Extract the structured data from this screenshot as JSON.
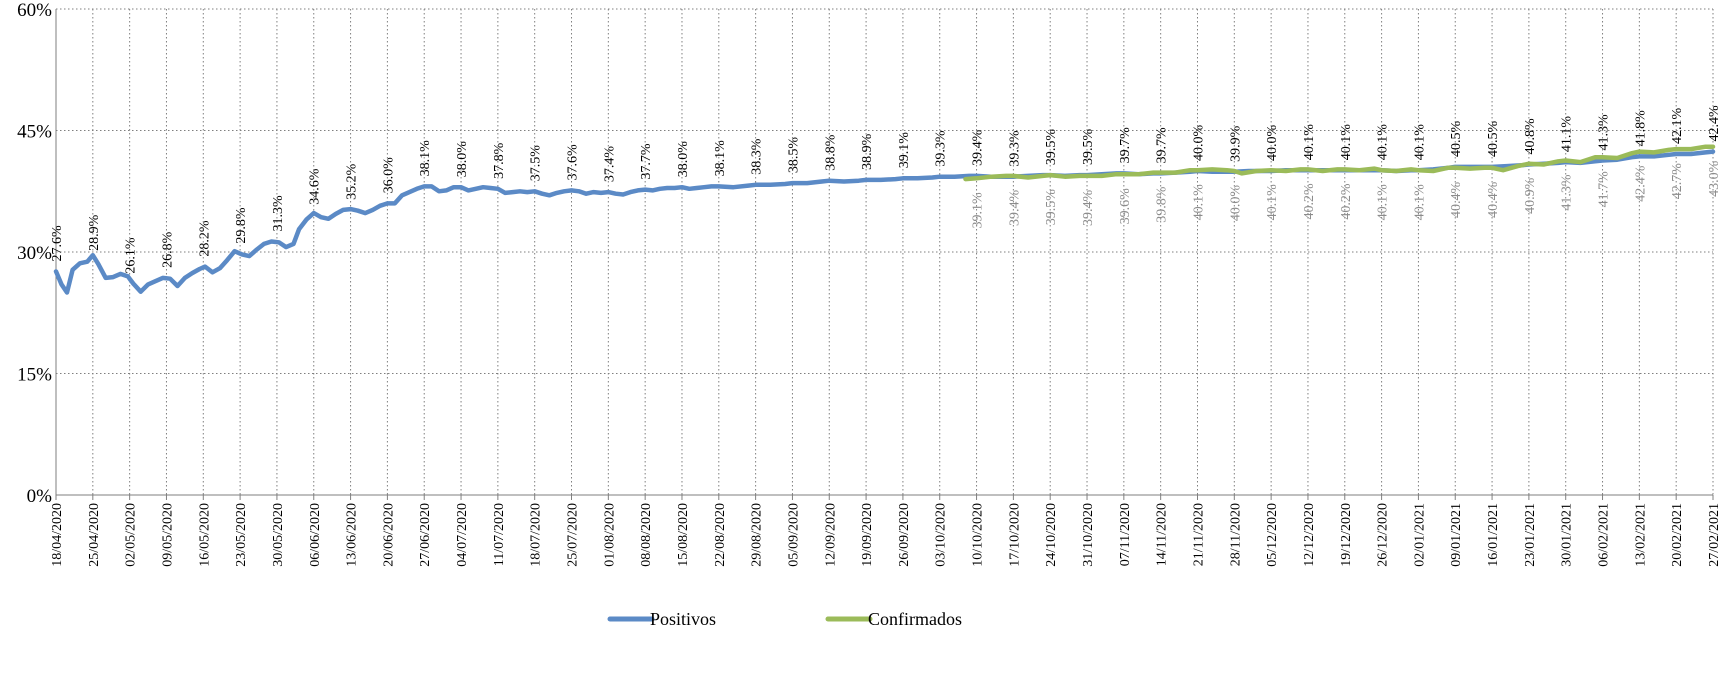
{
  "chart_data": {
    "type": "line",
    "ylim": [
      0,
      60
    ],
    "y_ticks": [
      0,
      15,
      30,
      45,
      60
    ],
    "y_tick_labels": [
      "0%",
      "15%",
      "30%",
      "45%",
      "60%"
    ],
    "x_tick_labels": [
      "18/04/2020",
      "25/04/2020",
      "02/05/2020",
      "09/05/2020",
      "16/05/2020",
      "23/05/2020",
      "30/05/2020",
      "06/06/2020",
      "13/06/2020",
      "20/06/2020",
      "27/06/2020",
      "04/07/2020",
      "11/07/2020",
      "18/07/2020",
      "25/07/2020",
      "01/08/2020",
      "08/08/2020",
      "15/08/2020",
      "22/08/2020",
      "29/08/2020",
      "05/09/2020",
      "12/09/2020",
      "19/09/2020",
      "26/09/2020",
      "03/10/2020",
      "10/10/2020",
      "17/10/2020",
      "24/10/2020",
      "31/10/2020",
      "07/11/2020",
      "14/11/2020",
      "21/11/2020",
      "28/11/2020",
      "05/12/2020",
      "12/12/2020",
      "19/12/2020",
      "26/12/2020",
      "02/01/2021",
      "09/01/2021",
      "16/01/2021",
      "23/01/2021",
      "30/01/2021",
      "06/02/2021",
      "13/02/2021",
      "20/02/2021",
      "27/02/2021"
    ],
    "grid": true,
    "legend_position": "bottom",
    "series": [
      {
        "name": "Positivos",
        "color": "#5b8ac6",
        "x": [
          0,
          1,
          2,
          3,
          4,
          5,
          6,
          7,
          8,
          9,
          10,
          11,
          12,
          13,
          14,
          15,
          16,
          17,
          18,
          19,
          20,
          21,
          22,
          23,
          24,
          25,
          26,
          27,
          28,
          29,
          30,
          31,
          32,
          33,
          34,
          35,
          36,
          37,
          38,
          39,
          40,
          41,
          42,
          43,
          44,
          45
        ],
        "values": [
          27.6,
          28.9,
          26.1,
          26.8,
          28.2,
          29.8,
          31.3,
          34.6,
          35.2,
          36.0,
          38.1,
          38.0,
          37.8,
          37.5,
          37.6,
          37.4,
          37.7,
          38.0,
          38.1,
          38.3,
          38.5,
          38.8,
          38.9,
          39.1,
          39.3,
          39.4,
          39.3,
          39.5,
          39.5,
          39.7,
          39.7,
          40.0,
          39.9,
          40.0,
          40.1,
          40.1,
          40.1,
          40.1,
          40.5,
          40.5,
          40.8,
          41.1,
          41.3,
          41.8,
          42.1,
          42.4
        ],
        "detail": [
          [
            0,
            27.6
          ],
          [
            0.15,
            26.0
          ],
          [
            0.3,
            25.0
          ],
          [
            0.45,
            27.8
          ],
          [
            0.65,
            28.6
          ],
          [
            0.85,
            28.8
          ],
          [
            1.0,
            29.6
          ],
          [
            1.15,
            28.5
          ],
          [
            1.35,
            26.8
          ],
          [
            1.55,
            26.9
          ],
          [
            1.75,
            27.3
          ],
          [
            1.95,
            27.0
          ],
          [
            2.1,
            26.1
          ],
          [
            2.3,
            25.1
          ],
          [
            2.5,
            26.0
          ],
          [
            2.7,
            26.4
          ],
          [
            2.9,
            26.8
          ],
          [
            3.1,
            26.7
          ],
          [
            3.3,
            25.8
          ],
          [
            3.5,
            26.8
          ],
          [
            3.7,
            27.4
          ],
          [
            3.9,
            27.9
          ],
          [
            4.05,
            28.2
          ],
          [
            4.25,
            27.5
          ],
          [
            4.45,
            28.0
          ],
          [
            4.65,
            29.0
          ],
          [
            4.85,
            30.1
          ],
          [
            5.05,
            29.7
          ],
          [
            5.25,
            29.5
          ],
          [
            5.45,
            30.3
          ],
          [
            5.65,
            31.0
          ],
          [
            5.85,
            31.3
          ],
          [
            6.05,
            31.2
          ],
          [
            6.25,
            30.6
          ],
          [
            6.45,
            31.0
          ],
          [
            6.6,
            32.8
          ],
          [
            6.8,
            34.0
          ],
          [
            7.0,
            34.8
          ],
          [
            7.2,
            34.3
          ],
          [
            7.4,
            34.1
          ],
          [
            7.6,
            34.7
          ],
          [
            7.8,
            35.2
          ],
          [
            8.0,
            35.3
          ],
          [
            8.2,
            35.1
          ],
          [
            8.4,
            34.8
          ],
          [
            8.6,
            35.2
          ],
          [
            8.8,
            35.7
          ],
          [
            9.0,
            36.0
          ],
          [
            9.2,
            36.0
          ],
          [
            9.4,
            37.0
          ],
          [
            9.6,
            37.4
          ],
          [
            9.8,
            37.8
          ],
          [
            10.0,
            38.1
          ],
          [
            10.2,
            38.1
          ],
          [
            10.4,
            37.5
          ],
          [
            10.6,
            37.6
          ],
          [
            10.8,
            38.0
          ],
          [
            11.0,
            38.0
          ],
          [
            11.2,
            37.6
          ],
          [
            11.4,
            37.8
          ],
          [
            11.6,
            38.0
          ],
          [
            11.8,
            37.9
          ],
          [
            12.0,
            37.8
          ],
          [
            12.2,
            37.3
          ],
          [
            12.4,
            37.4
          ],
          [
            12.6,
            37.5
          ],
          [
            12.8,
            37.4
          ],
          [
            13.0,
            37.5
          ],
          [
            13.2,
            37.2
          ],
          [
            13.4,
            37.0
          ],
          [
            13.6,
            37.3
          ],
          [
            13.8,
            37.5
          ],
          [
            14.0,
            37.6
          ],
          [
            14.2,
            37.5
          ],
          [
            14.4,
            37.2
          ],
          [
            14.6,
            37.4
          ],
          [
            14.8,
            37.3
          ],
          [
            15.0,
            37.4
          ],
          [
            15.2,
            37.2
          ],
          [
            15.4,
            37.1
          ],
          [
            15.6,
            37.4
          ],
          [
            15.8,
            37.6
          ],
          [
            16.0,
            37.7
          ],
          [
            16.2,
            37.6
          ],
          [
            16.4,
            37.8
          ],
          [
            16.6,
            37.9
          ],
          [
            16.8,
            37.9
          ],
          [
            17.0,
            38.0
          ],
          [
            17.2,
            37.8
          ],
          [
            17.4,
            37.9
          ],
          [
            17.6,
            38.0
          ],
          [
            17.8,
            38.1
          ],
          [
            18.0,
            38.1
          ],
          [
            18.4,
            38.0
          ],
          [
            18.8,
            38.2
          ],
          [
            19.0,
            38.3
          ],
          [
            19.4,
            38.3
          ],
          [
            19.8,
            38.4
          ],
          [
            20.0,
            38.5
          ],
          [
            20.4,
            38.5
          ],
          [
            20.8,
            38.7
          ],
          [
            21.0,
            38.8
          ],
          [
            21.4,
            38.7
          ],
          [
            21.8,
            38.8
          ],
          [
            22.0,
            38.9
          ],
          [
            22.4,
            38.9
          ],
          [
            22.8,
            39.0
          ],
          [
            23.0,
            39.1
          ],
          [
            23.4,
            39.1
          ],
          [
            23.8,
            39.2
          ],
          [
            24.0,
            39.3
          ],
          [
            24.4,
            39.3
          ],
          [
            24.8,
            39.4
          ],
          [
            25.0,
            39.4
          ],
          [
            25.4,
            39.3
          ],
          [
            25.8,
            39.3
          ],
          [
            26.0,
            39.3
          ],
          [
            26.4,
            39.4
          ],
          [
            26.8,
            39.5
          ],
          [
            27.0,
            39.5
          ],
          [
            27.4,
            39.4
          ],
          [
            27.8,
            39.5
          ],
          [
            28.0,
            39.5
          ],
          [
            28.4,
            39.6
          ],
          [
            28.8,
            39.7
          ],
          [
            29.0,
            39.7
          ],
          [
            29.4,
            39.6
          ],
          [
            29.8,
            39.7
          ],
          [
            30.0,
            39.7
          ],
          [
            30.4,
            39.8
          ],
          [
            30.8,
            39.9
          ],
          [
            31.0,
            40.0
          ],
          [
            31.4,
            39.9
          ],
          [
            31.8,
            39.9
          ],
          [
            32.0,
            39.9
          ],
          [
            32.4,
            40.0
          ],
          [
            32.8,
            40.0
          ],
          [
            33.0,
            40.0
          ],
          [
            33.4,
            40.1
          ],
          [
            33.8,
            40.1
          ],
          [
            34.0,
            40.1
          ],
          [
            34.4,
            40.1
          ],
          [
            34.8,
            40.1
          ],
          [
            35.0,
            40.1
          ],
          [
            35.4,
            40.1
          ],
          [
            35.8,
            40.1
          ],
          [
            36.0,
            40.1
          ],
          [
            36.4,
            40.0
          ],
          [
            36.8,
            40.1
          ],
          [
            37.0,
            40.1
          ],
          [
            37.4,
            40.2
          ],
          [
            37.8,
            40.4
          ],
          [
            38.0,
            40.5
          ],
          [
            38.4,
            40.5
          ],
          [
            38.8,
            40.5
          ],
          [
            39.0,
            40.5
          ],
          [
            39.4,
            40.6
          ],
          [
            39.8,
            40.7
          ],
          [
            40.0,
            40.8
          ],
          [
            40.4,
            40.9
          ],
          [
            40.8,
            41.0
          ],
          [
            41.0,
            41.1
          ],
          [
            41.4,
            41.0
          ],
          [
            41.8,
            41.2
          ],
          [
            42.0,
            41.3
          ],
          [
            42.4,
            41.4
          ],
          [
            42.8,
            41.7
          ],
          [
            43.0,
            41.8
          ],
          [
            43.4,
            41.8
          ],
          [
            43.8,
            42.0
          ],
          [
            44.0,
            42.1
          ],
          [
            44.4,
            42.1
          ],
          [
            44.8,
            42.3
          ],
          [
            45.0,
            42.4
          ]
        ]
      },
      {
        "name": "Confirmados",
        "color": "#9bbb59",
        "x": [
          25,
          26,
          27,
          28,
          29,
          30,
          31,
          32,
          33,
          34,
          35,
          36,
          37,
          38,
          39,
          40,
          41,
          42,
          43,
          44,
          45
        ],
        "values": [
          39.1,
          39.4,
          39.5,
          39.4,
          39.6,
          39.8,
          40.1,
          40.0,
          40.1,
          40.2,
          40.2,
          40.1,
          40.1,
          40.4,
          40.4,
          40.9,
          41.3,
          41.7,
          42.4,
          42.7,
          43.0
        ],
        "detail": [
          [
            24.7,
            39.0
          ],
          [
            25.0,
            39.1
          ],
          [
            25.4,
            39.3
          ],
          [
            25.8,
            39.4
          ],
          [
            26.0,
            39.4
          ],
          [
            26.4,
            39.2
          ],
          [
            26.8,
            39.4
          ],
          [
            27.0,
            39.5
          ],
          [
            27.4,
            39.3
          ],
          [
            27.8,
            39.4
          ],
          [
            28.0,
            39.4
          ],
          [
            28.4,
            39.4
          ],
          [
            28.8,
            39.6
          ],
          [
            29.0,
            39.6
          ],
          [
            29.4,
            39.6
          ],
          [
            29.8,
            39.8
          ],
          [
            30.0,
            39.8
          ],
          [
            30.4,
            39.8
          ],
          [
            30.8,
            40.1
          ],
          [
            31.0,
            40.1
          ],
          [
            31.4,
            40.2
          ],
          [
            31.8,
            40.1
          ],
          [
            32.0,
            40.0
          ],
          [
            32.2,
            39.7
          ],
          [
            32.6,
            40.0
          ],
          [
            33.0,
            40.1
          ],
          [
            33.4,
            40.0
          ],
          [
            33.8,
            40.2
          ],
          [
            34.0,
            40.2
          ],
          [
            34.4,
            40.0
          ],
          [
            34.8,
            40.2
          ],
          [
            35.0,
            40.2
          ],
          [
            35.4,
            40.1
          ],
          [
            35.8,
            40.3
          ],
          [
            36.0,
            40.1
          ],
          [
            36.4,
            40.0
          ],
          [
            36.8,
            40.2
          ],
          [
            37.0,
            40.1
          ],
          [
            37.4,
            40.0
          ],
          [
            37.8,
            40.4
          ],
          [
            38.0,
            40.4
          ],
          [
            38.4,
            40.3
          ],
          [
            38.8,
            40.4
          ],
          [
            39.0,
            40.4
          ],
          [
            39.3,
            40.1
          ],
          [
            39.7,
            40.6
          ],
          [
            40.0,
            40.9
          ],
          [
            40.4,
            40.8
          ],
          [
            40.8,
            41.2
          ],
          [
            41.0,
            41.3
          ],
          [
            41.4,
            41.1
          ],
          [
            41.8,
            41.7
          ],
          [
            42.0,
            41.7
          ],
          [
            42.4,
            41.6
          ],
          [
            42.8,
            42.2
          ],
          [
            43.0,
            42.4
          ],
          [
            43.4,
            42.3
          ],
          [
            43.8,
            42.6
          ],
          [
            44.0,
            42.7
          ],
          [
            44.4,
            42.7
          ],
          [
            44.8,
            43.0
          ],
          [
            45.0,
            43.0
          ]
        ]
      }
    ],
    "data_labels": {
      "Positivos": [
        "27.6%",
        "28.9%",
        "26.1%",
        "26.8%",
        "28.2%",
        "29.8%",
        "31.3%",
        "34.6%",
        "35.2%",
        "36.0%",
        "38.1%",
        "38.0%",
        "37.8%",
        "37.5%",
        "37.6%",
        "37.4%",
        "37.7%",
        "38.0%",
        "38.1%",
        "38.3%",
        "38.5%",
        "38.8%",
        "38.9%",
        "39.1%",
        "39.3%",
        "39.4%",
        "39.3%",
        "39.5%",
        "39.5%",
        "39.7%",
        "39.7%",
        "40.0%",
        "39.9%",
        "40.0%",
        "40.1%",
        "40.1%",
        "40.1%",
        "40.1%",
        "40.5%",
        "40.5%",
        "40.8%",
        "41.1%",
        "41.3%",
        "41.8%",
        "42.1%",
        "42.4%"
      ],
      "Confirmados": [
        "39.1%",
        "39.4%",
        "39.5%",
        "39.4%",
        "39.6%",
        "39.8%",
        "40.1%",
        "40.0%",
        "40.1%",
        "40.2%",
        "40.2%",
        "40.1%",
        "40.1%",
        "40.4%",
        "40.4%",
        "40.9%",
        "41.3%",
        "41.7%",
        "42.4%",
        "42.7%",
        "43.0%"
      ]
    }
  }
}
